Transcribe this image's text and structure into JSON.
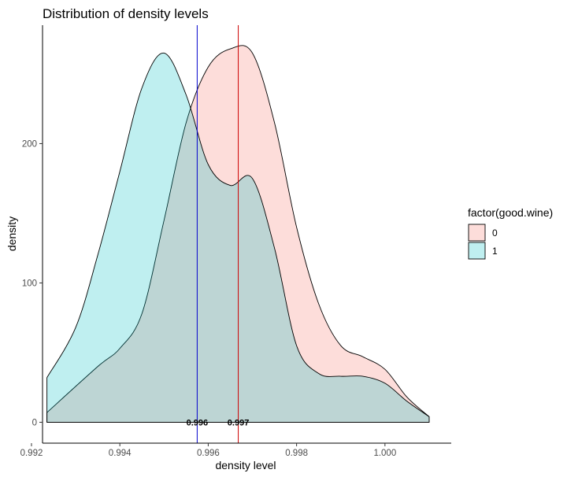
{
  "chart_data": {
    "type": "area",
    "title": "Distribution of density levels",
    "xlabel": "density level",
    "ylabel": "density",
    "xlim": [
      0.99225,
      1.0015
    ],
    "ylim": [
      -15,
      285
    ],
    "x_ticks": [
      0.992,
      0.994,
      0.996,
      0.998,
      1.0
    ],
    "x_tick_labels": [
      "0.992",
      "0.994",
      "0.996",
      "0.998",
      "1.000"
    ],
    "y_ticks": [
      0,
      100,
      200
    ],
    "y_tick_labels": [
      "0",
      "100",
      "200"
    ],
    "grid": false,
    "legend": {
      "title": "factor(good.wine)",
      "position": "right",
      "entries": [
        {
          "label": "0",
          "color": "#F8766D"
        },
        {
          "label": "1",
          "color": "#00BFC4"
        }
      ]
    },
    "series": [
      {
        "name": "0",
        "color": "#F8766D",
        "fill_opacity": 0.25,
        "x": [
          0.99235,
          0.9935,
          0.994,
          0.9945,
          0.995,
          0.9955,
          0.996,
          0.9965,
          0.997,
          0.9975,
          0.998,
          0.9985,
          0.999,
          0.9995,
          1.0,
          1.0005,
          1.001
        ],
        "y": [
          7,
          40,
          53,
          78,
          145,
          215,
          255,
          268,
          265,
          215,
          140,
          85,
          55,
          47,
          38,
          18,
          4
        ]
      },
      {
        "name": "1",
        "color": "#00BFC4",
        "fill_opacity": 0.25,
        "x": [
          0.99235,
          0.993,
          0.9935,
          0.994,
          0.9945,
          0.995,
          0.9955,
          0.996,
          0.9965,
          0.997,
          0.9975,
          0.998,
          0.9985,
          0.999,
          0.9995,
          1.0,
          1.0005,
          1.001
        ],
        "y": [
          32,
          68,
          120,
          180,
          240,
          265,
          235,
          185,
          170,
          175,
          125,
          55,
          35,
          33,
          33,
          28,
          15,
          4
        ]
      }
    ],
    "vlines": [
      {
        "x": 0.99575,
        "color": "#0000CD",
        "label": "0.996"
      },
      {
        "x": 0.99668,
        "color": "#CD0000",
        "label": "0.997"
      }
    ]
  }
}
